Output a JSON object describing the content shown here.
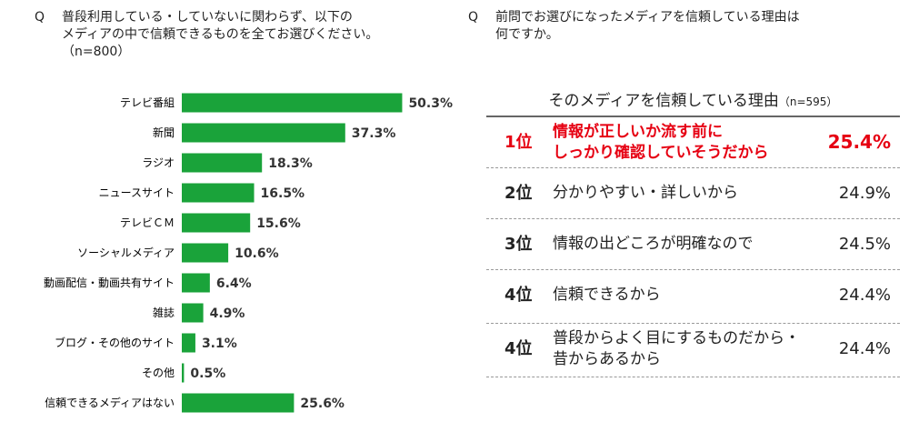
{
  "left_question": {
    "mark": "Q",
    "text": "普段利用している・していないに関わらず、以下の\nメディアの中で信頼できるものを全てお選びください。\n（n=800）"
  },
  "right_question": {
    "mark": "Q",
    "text": "前問でお選びになったメディアを信頼している理由は\n何ですか。"
  },
  "chart_data": {
    "type": "bar",
    "orientation": "horizontal",
    "categories": [
      "テレビ番組",
      "新聞",
      "ラジオ",
      "ニュースサイト",
      "テレビＣＭ",
      "ソーシャルメディア",
      "動画配信・動画共有サイト",
      "雑誌",
      "ブログ・その他のサイト",
      "その他",
      "信頼できるメディアはない"
    ],
    "values": [
      50.3,
      37.3,
      18.3,
      16.5,
      15.6,
      10.6,
      6.4,
      4.9,
      3.1,
      0.5,
      25.6
    ],
    "labels": [
      "50.3%",
      "37.3%",
      "18.3%",
      "16.5%",
      "15.6%",
      "10.6%",
      "6.4%",
      "4.9%",
      "3.1%",
      "0.5%",
      "25.6%"
    ],
    "unit": "%",
    "color": "#1aa33a",
    "xlim": [
      0,
      60
    ]
  },
  "table": {
    "title": "そのメディアを信頼している理由",
    "n": "（n=595）",
    "highlight_color": "#e60012",
    "rows": [
      {
        "rank": "1位",
        "reason": "情報が正しいか流す前に\nしっかり確認していそうだから",
        "pct": "25.4%"
      },
      {
        "rank": "2位",
        "reason": "分かりやすい・詳しいから",
        "pct": "24.9%"
      },
      {
        "rank": "3位",
        "reason": "情報の出どころが明確なので",
        "pct": "24.5%"
      },
      {
        "rank": "4位",
        "reason": "信頼できるから",
        "pct": "24.4%"
      },
      {
        "rank": "4位",
        "reason": "普段からよく目にするものだから・\n昔からあるから",
        "pct": "24.4%"
      }
    ]
  }
}
